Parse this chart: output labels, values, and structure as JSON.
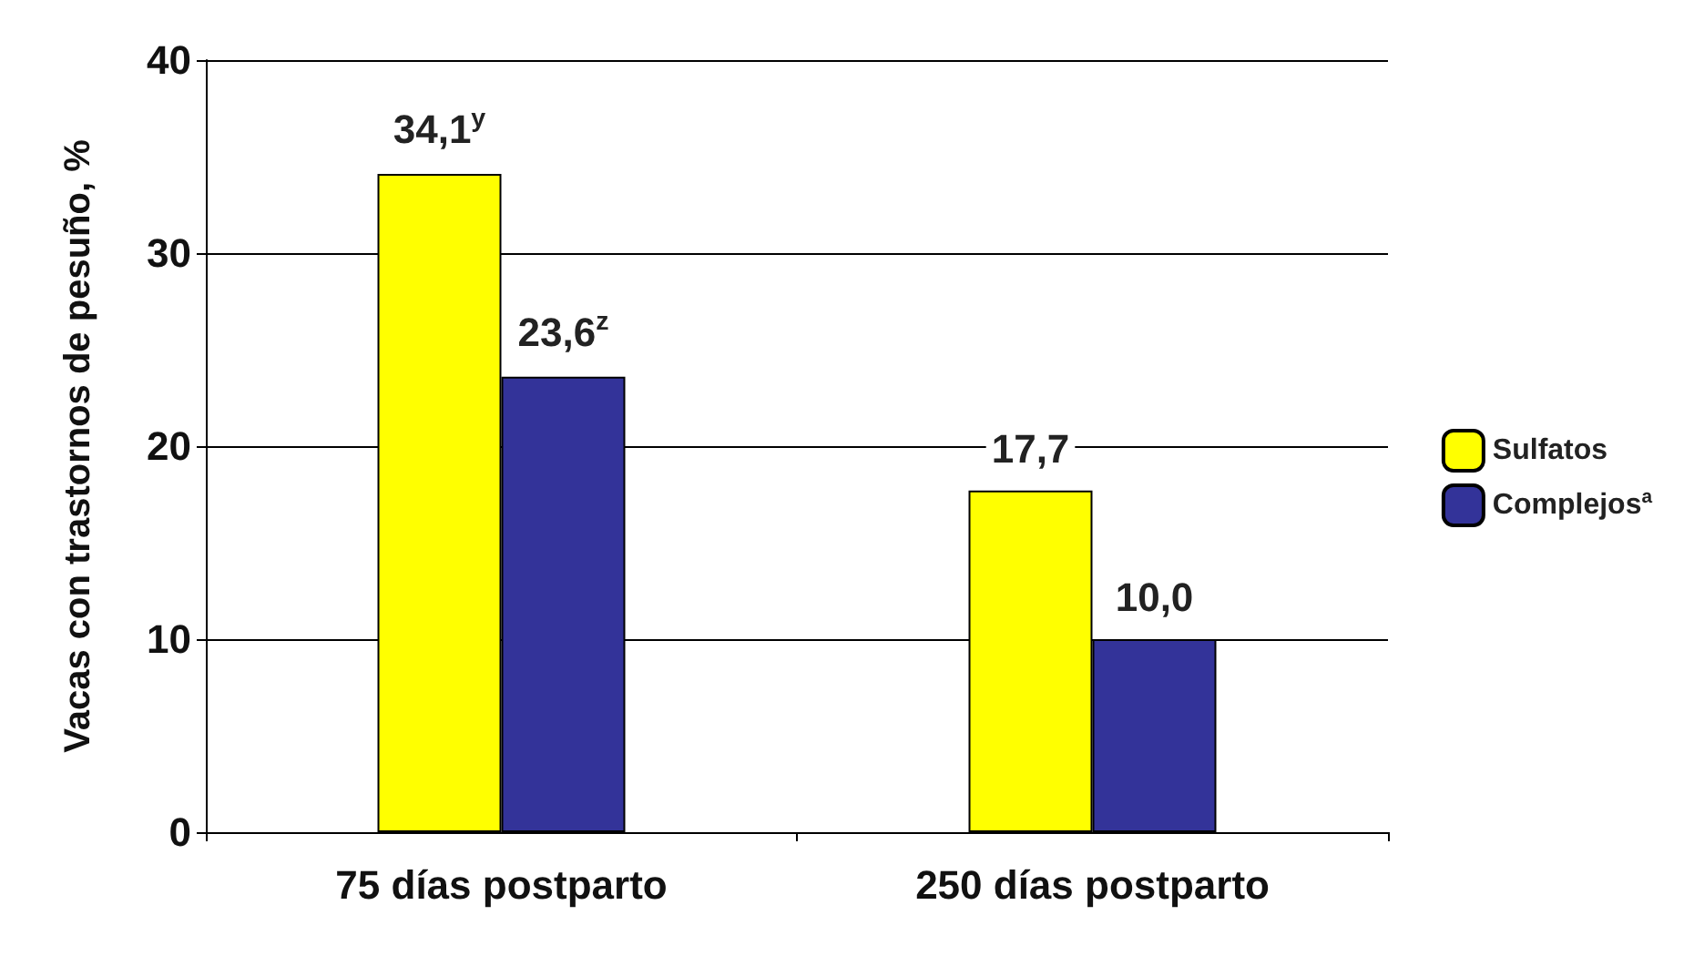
{
  "chart_data": {
    "type": "bar",
    "ylabel": "Vacas con trastornos de pesuño, %",
    "categories": [
      "75 días postparto",
      "250 días postparto"
    ],
    "series": [
      {
        "name": "Sulfatos",
        "color": "#ffff00",
        "values": [
          34.1,
          17.7
        ],
        "value_labels": [
          "34,1$^{y}$",
          "17,7"
        ]
      },
      {
        "name": "Complejos$^{a}$",
        "color": "#333399",
        "values": [
          23.6,
          10.0
        ],
        "value_labels": [
          "23,6$^{z}$",
          "10,0"
        ]
      }
    ],
    "ylim": [
      0,
      40
    ],
    "yticks": [
      0,
      10,
      20,
      30,
      40
    ],
    "grid": "y",
    "legend": "right"
  }
}
